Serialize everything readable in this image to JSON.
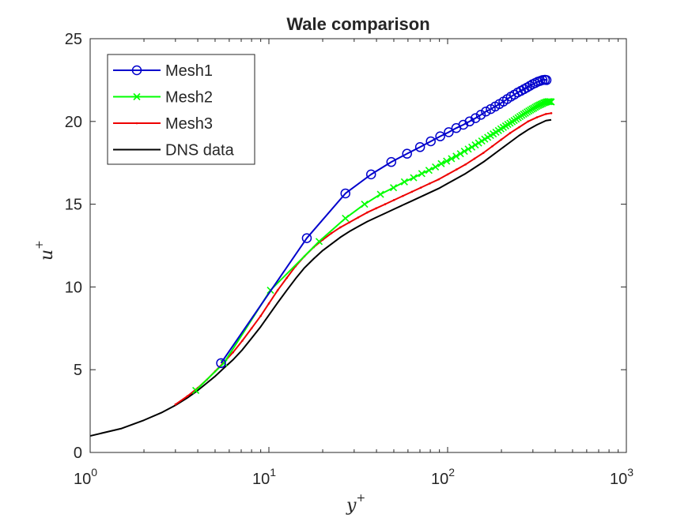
{
  "chart_data": {
    "type": "line",
    "title": "Wale comparison",
    "xlabel": "y",
    "xlabel_sup": "+",
    "ylabel": "u",
    "ylabel_sup": "+",
    "xscale": "log",
    "xlim": [
      1,
      1000
    ],
    "ylim": [
      0,
      25
    ],
    "x_ticks": [
      {
        "value": 1,
        "base": "10",
        "exp": "0"
      },
      {
        "value": 10,
        "base": "10",
        "exp": "1"
      },
      {
        "value": 100,
        "base": "10",
        "exp": "2"
      },
      {
        "value": 1000,
        "base": "10",
        "exp": "3"
      }
    ],
    "y_ticks": [
      {
        "value": 0,
        "label": "0"
      },
      {
        "value": 5,
        "label": "5"
      },
      {
        "value": 10,
        "label": "10"
      },
      {
        "value": 15,
        "label": "15"
      },
      {
        "value": 20,
        "label": "20"
      },
      {
        "value": 25,
        "label": "25"
      }
    ],
    "grid": false,
    "legend": "top-left",
    "series": [
      {
        "name": "Mesh1",
        "color": "#0000cc",
        "marker": "circle",
        "x": [
          5.4,
          16.3,
          26.8,
          37.3,
          48.4,
          59.3,
          70.1,
          80.5,
          90.9,
          101.4,
          111.8,
          122.4,
          132.7,
          143.2,
          153.4,
          163.8,
          174.3,
          184.5,
          194.8,
          205.2,
          215.4,
          225.9,
          236.2,
          246.8,
          257.1,
          267.5,
          277.9,
          288.4,
          298.8,
          309.0,
          319.3,
          329.6,
          339.9,
          350.1,
          357.6
        ],
        "y": [
          5.4,
          12.95,
          15.65,
          16.8,
          17.55,
          18.05,
          18.45,
          18.8,
          19.1,
          19.35,
          19.6,
          19.8,
          20.0,
          20.2,
          20.4,
          20.6,
          20.75,
          20.9,
          21.05,
          21.2,
          21.35,
          21.5,
          21.62,
          21.75,
          21.85,
          21.95,
          22.05,
          22.15,
          22.25,
          22.32,
          22.4,
          22.45,
          22.5,
          22.52,
          22.5
        ]
      },
      {
        "name": "Mesh2",
        "color": "#00ff00",
        "marker": "x",
        "x": [
          3.9,
          5.6,
          10.2,
          19.1,
          26.8,
          34.3,
          42.1,
          49.8,
          57.3,
          64.5,
          71.7,
          78.6,
          85.5,
          92.1,
          98.7,
          105.1,
          111.6,
          117.9,
          124.1,
          130.4,
          136.6,
          142.8,
          149.0,
          155.3,
          161.3,
          167.6,
          173.8,
          180.0,
          186.3,
          192.5,
          198.6,
          204.9,
          211.2,
          217.2,
          223.5,
          229.6,
          235.7,
          241.9,
          248.1,
          254.1,
          260.2,
          266.4,
          272.5,
          278.6,
          284.8,
          290.9,
          297.0,
          303.1,
          309.2,
          315.2,
          321.3,
          327.2,
          333.3,
          339.3,
          345.3,
          351.4,
          357.5,
          363.5,
          369.5,
          375.0,
          380.0
        ],
        "y": [
          3.75,
          5.4,
          9.8,
          12.75,
          14.15,
          15.0,
          15.6,
          16.0,
          16.35,
          16.6,
          16.85,
          17.05,
          17.25,
          17.45,
          17.6,
          17.75,
          17.9,
          18.05,
          18.2,
          18.33,
          18.45,
          18.58,
          18.7,
          18.82,
          18.93,
          19.04,
          19.15,
          19.25,
          19.35,
          19.45,
          19.55,
          19.64,
          19.73,
          19.82,
          19.9,
          19.98,
          20.06,
          20.14,
          20.22,
          20.3,
          20.37,
          20.44,
          20.5,
          20.57,
          20.63,
          20.69,
          20.75,
          20.8,
          20.86,
          20.91,
          20.96,
          21.0,
          21.04,
          21.08,
          21.12,
          21.15,
          21.18,
          21.2,
          21.2,
          21.2,
          21.18
        ]
      },
      {
        "name": "Mesh3",
        "color": "#ee0000",
        "marker": "dot",
        "x": [
          3.0,
          3.5,
          4.0,
          4.5,
          5.0,
          5.6,
          6.3,
          7.1,
          8.0,
          9.0,
          10.0,
          11.2,
          12.6,
          14.1,
          15.8,
          17.8,
          20.0,
          22.4,
          25.1,
          28.2,
          31.6,
          35.5,
          39.8,
          44.7,
          50.1,
          56.2,
          63.1,
          70.8,
          79.4,
          89.1,
          100.0,
          112.2,
          125.9,
          141.3,
          158.5,
          177.8,
          199.5,
          223.9,
          251.2,
          281.8,
          316.2,
          354.8,
          380.0
        ],
        "y": [
          2.9,
          3.4,
          3.9,
          4.4,
          4.9,
          5.45,
          6.05,
          6.75,
          7.5,
          8.25,
          9.0,
          9.8,
          10.55,
          11.25,
          11.85,
          12.4,
          12.85,
          13.25,
          13.6,
          13.9,
          14.2,
          14.5,
          14.75,
          15.0,
          15.25,
          15.5,
          15.75,
          16.0,
          16.25,
          16.5,
          16.8,
          17.1,
          17.4,
          17.75,
          18.1,
          18.5,
          18.9,
          19.3,
          19.65,
          20.0,
          20.25,
          20.45,
          20.5
        ]
      },
      {
        "name": "DNS data",
        "color": "#000000",
        "marker": "none",
        "x": [
          1.0,
          1.5,
          2.0,
          2.5,
          3.0,
          3.5,
          4.0,
          4.5,
          5.0,
          5.6,
          6.3,
          7.1,
          8.0,
          9.0,
          10.0,
          11.2,
          12.6,
          14.1,
          15.8,
          17.8,
          20.0,
          22.4,
          25.1,
          28.2,
          31.6,
          35.5,
          39.8,
          44.7,
          50.1,
          56.2,
          63.1,
          70.8,
          79.4,
          89.1,
          100.0,
          112.2,
          125.9,
          141.3,
          158.5,
          177.8,
          199.5,
          223.9,
          251.2,
          281.8,
          316.2,
          354.8,
          380.0
        ],
        "y": [
          1.0,
          1.45,
          1.95,
          2.4,
          2.85,
          3.3,
          3.75,
          4.2,
          4.6,
          5.1,
          5.6,
          6.2,
          6.9,
          7.6,
          8.3,
          9.05,
          9.8,
          10.5,
          11.15,
          11.7,
          12.2,
          12.6,
          13.0,
          13.35,
          13.65,
          13.95,
          14.2,
          14.45,
          14.7,
          14.95,
          15.2,
          15.45,
          15.7,
          15.95,
          16.25,
          16.55,
          16.85,
          17.2,
          17.55,
          17.95,
          18.35,
          18.75,
          19.15,
          19.5,
          19.8,
          20.05,
          20.1
        ]
      }
    ]
  }
}
